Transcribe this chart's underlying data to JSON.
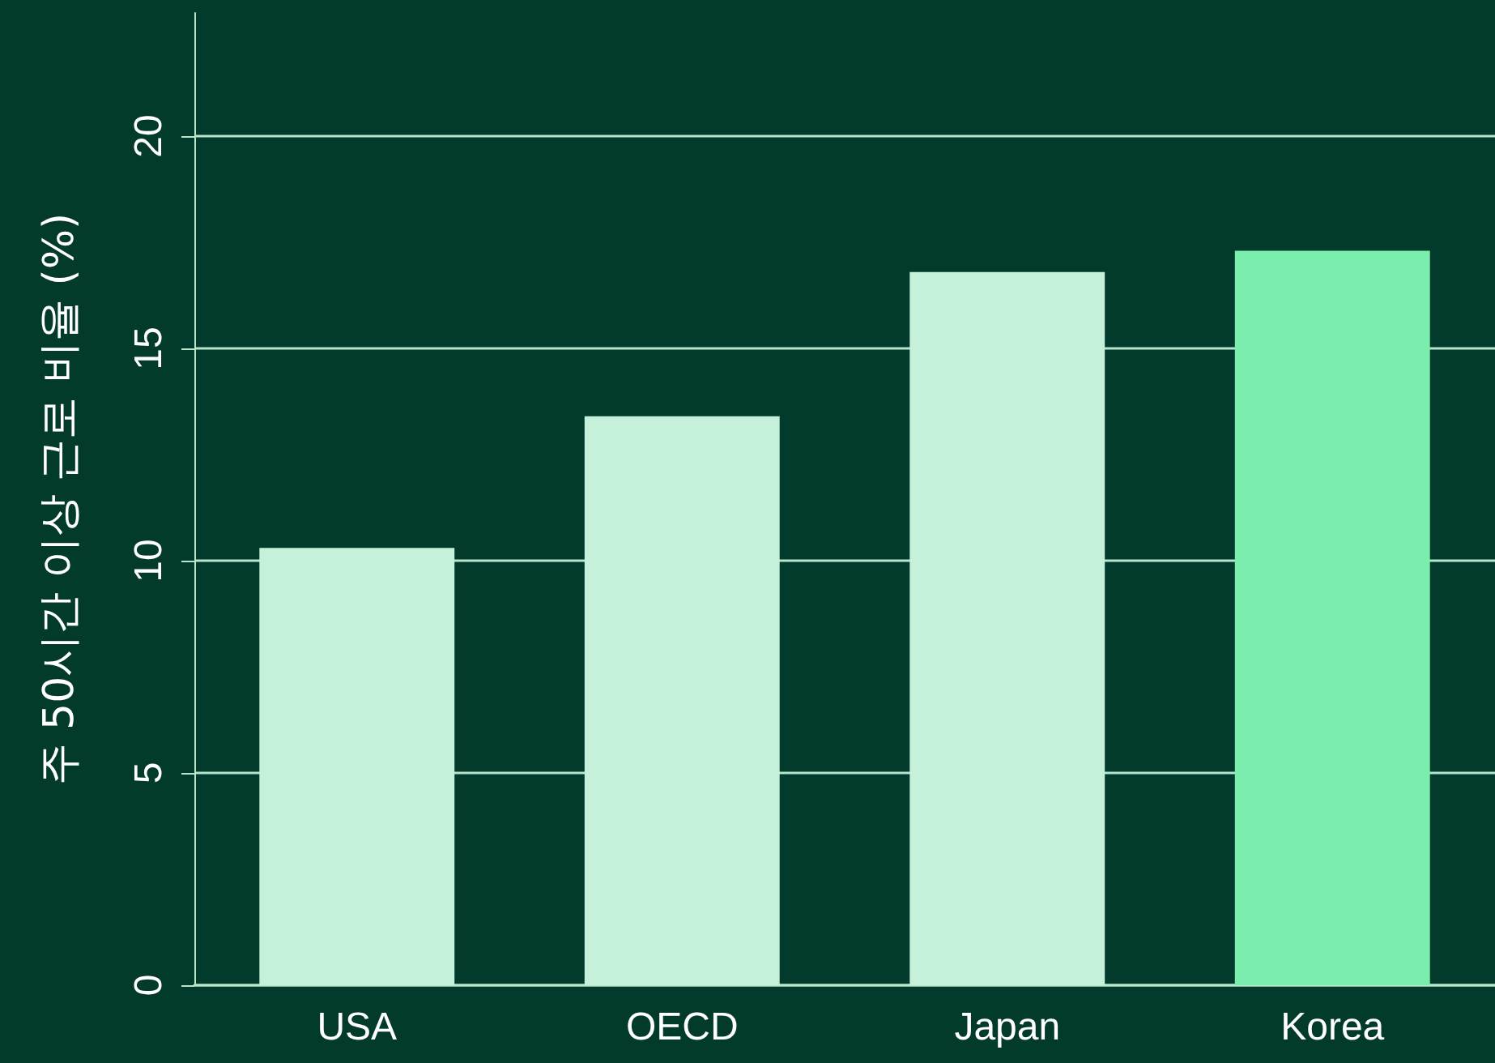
{
  "chart_data": {
    "type": "bar",
    "ylabel": "주 50시간 이상 근로 비율 (%)",
    "categories": [
      "USA",
      "OECD",
      "Japan",
      "Korea"
    ],
    "values": [
      10.3,
      13.4,
      16.8,
      17.3
    ],
    "colors": [
      "#c5f0da",
      "#c5f0da",
      "#c5f0da",
      "#7beeae"
    ],
    "ylim": [
      0,
      22.9
    ],
    "yticks": [
      0,
      5,
      10,
      15,
      20
    ],
    "grid": "y"
  }
}
